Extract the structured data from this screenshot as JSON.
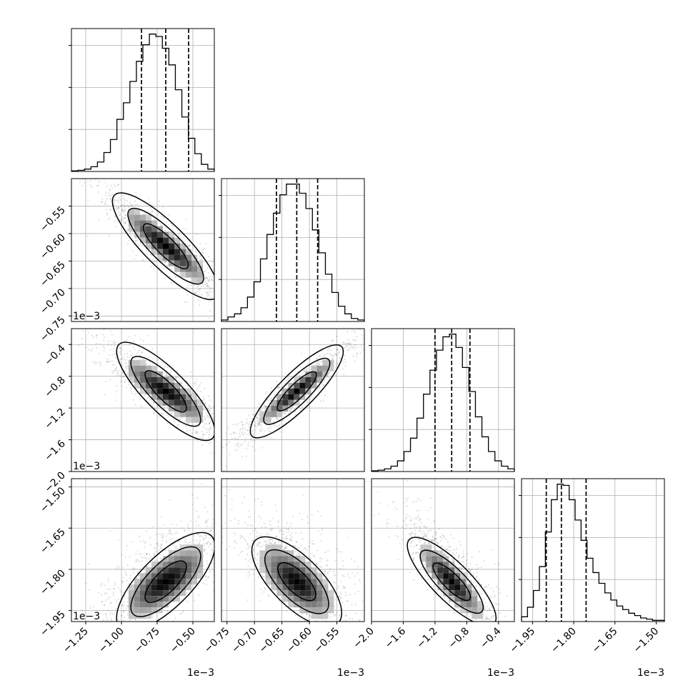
{
  "chart_data": {
    "type": "corner",
    "n_params": 4,
    "grid": true,
    "colors": {
      "line": "#000000",
      "grid": "#b0b0b0",
      "scatter": "#000000",
      "contour": "#000000"
    },
    "parameters": [
      {
        "range": [
          -1.35,
          -0.35
        ],
        "ticks": [
          -1.25,
          -1.0,
          -0.75,
          -0.5
        ],
        "tick_labels": [
          "−1.25",
          "−1.00",
          "−0.75",
          "−0.50"
        ],
        "offset_label": "1e−3",
        "quantiles": [
          -0.86,
          -0.69,
          -0.53
        ],
        "hist": [
          0.5,
          1,
          2,
          4,
          8,
          16,
          27,
          44,
          58,
          76,
          93,
          107,
          116,
          114,
          104,
          90,
          69,
          46,
          28,
          15,
          6,
          2
        ]
      },
      {
        "range": [
          -0.76,
          -0.5
        ],
        "ticks": [
          -0.75,
          -0.7,
          -0.65,
          -0.6,
          -0.55
        ],
        "tick_labels": [
          "−0.75",
          "−0.70",
          "−0.65",
          "−0.60",
          "−0.55"
        ],
        "offset_label": "1e−3",
        "quantiles": [
          -0.66,
          -0.623,
          -0.585
        ],
        "hist": [
          1,
          3,
          5,
          9,
          16,
          26,
          41,
          57,
          71,
          83,
          90,
          90,
          84,
          74,
          60,
          45,
          31,
          19,
          10,
          5,
          2,
          1
        ]
      },
      {
        "range": [
          -2.0,
          -0.2
        ],
        "ticks": [
          -2.0,
          -1.6,
          -1.2,
          -0.8,
          -0.4
        ],
        "tick_labels": [
          "−2.0",
          "−1.6",
          "−1.2",
          "−0.8",
          "−0.4"
        ],
        "offset_label": "1e−3",
        "quantiles": [
          -1.2,
          -0.99,
          -0.76
        ],
        "hist": [
          0.5,
          1,
          2,
          4,
          8,
          15,
          25,
          40,
          58,
          76,
          91,
          101,
          103,
          93,
          78,
          60,
          41,
          26,
          15,
          8,
          4,
          2
        ]
      },
      {
        "range": [
          -1.99,
          -1.47
        ],
        "ticks": [
          -1.95,
          -1.8,
          -1.65,
          -1.5
        ],
        "tick_labels": [
          "−1.95",
          "−1.80",
          "−1.65",
          "−1.50"
        ],
        "offset_label": "1e−3",
        "quantiles": [
          -1.9,
          -1.845,
          -1.755
        ],
        "hist": [
          4,
          12,
          26,
          46,
          75,
          102,
          115,
          114,
          102,
          85,
          68,
          53,
          41,
          32,
          24,
          18,
          13,
          10,
          7,
          5,
          3,
          2,
          1,
          1
        ]
      }
    ],
    "correlations": [
      [
        1,
        -0.9,
        -0.85,
        0.7
      ],
      [
        -0.9,
        1,
        0.93,
        -0.65
      ],
      [
        -0.85,
        0.93,
        1,
        -0.85
      ],
      [
        0.7,
        -0.65,
        -0.85,
        1
      ]
    ]
  }
}
